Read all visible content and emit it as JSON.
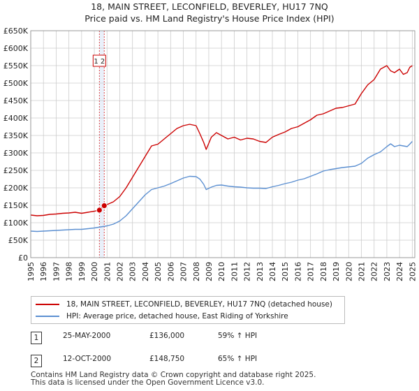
{
  "title_line1": "18, MAIN STREET, LECONFIELD, BEVERLEY, HU17 7NQ",
  "title_line2": "Price paid vs. HM Land Registry's House Price Index (HPI)",
  "colors": {
    "property": "#cc0000",
    "hpi": "#5b8fd1",
    "band": "#dbe6f7",
    "grid": "#cccccc"
  },
  "chart_data": {
    "type": "line",
    "ylim": [
      0,
      650000
    ],
    "xlim": [
      1995,
      2025.2
    ],
    "y_ticks": [
      0,
      50000,
      100000,
      150000,
      200000,
      250000,
      300000,
      350000,
      400000,
      450000,
      500000,
      550000,
      600000,
      650000
    ],
    "y_tick_labels": [
      "£0",
      "£50K",
      "£100K",
      "£150K",
      "£200K",
      "£250K",
      "£300K",
      "£350K",
      "£400K",
      "£450K",
      "£500K",
      "£550K",
      "£600K",
      "£650K"
    ],
    "x_tick_labels": [
      "1995",
      "1996",
      "1997",
      "1998",
      "1999",
      "2000",
      "2001",
      "2002",
      "2003",
      "2004",
      "2005",
      "2006",
      "2007",
      "2008",
      "2009",
      "2010",
      "2011",
      "2012",
      "2013",
      "2014",
      "2015",
      "2016",
      "2017",
      "2018",
      "2019",
      "2020",
      "2021",
      "2022",
      "2023",
      "2024",
      "2025"
    ],
    "series": [
      {
        "name": "18, MAIN STREET, LECONFIELD, BEVERLEY, HU17 7NQ (detached house)",
        "color": "#cc0000",
        "x": [
          1995,
          1995.5,
          1996,
          1996.5,
          1997,
          1997.5,
          1998,
          1998.5,
          1999,
          1999.5,
          2000,
          2000.4,
          2000.78,
          2001,
          2001.5,
          2002,
          2002.5,
          2003,
          2003.5,
          2004,
          2004.5,
          2005,
          2005.5,
          2006,
          2006.5,
          2007,
          2007.5,
          2008,
          2008.3,
          2008.6,
          2008.8,
          2009.2,
          2009.6,
          2010,
          2010.5,
          2011,
          2011.5,
          2012,
          2012.5,
          2013,
          2013.5,
          2014,
          2014.5,
          2015,
          2015.5,
          2016,
          2016.5,
          2017,
          2017.5,
          2018,
          2018.5,
          2019,
          2019.5,
          2020,
          2020.5,
          2021,
          2021.5,
          2022,
          2022.5,
          2023,
          2023.3,
          2023.6,
          2024,
          2024.3,
          2024.6,
          2024.8,
          2025
        ],
        "values": [
          122000,
          120000,
          121000,
          124000,
          125000,
          127000,
          128000,
          130000,
          127000,
          130000,
          133000,
          136000,
          148750,
          152000,
          160000,
          175000,
          200000,
          230000,
          260000,
          290000,
          320000,
          325000,
          340000,
          355000,
          370000,
          378000,
          382000,
          378000,
          355000,
          330000,
          310000,
          345000,
          358000,
          350000,
          340000,
          345000,
          337000,
          342000,
          340000,
          333000,
          330000,
          345000,
          353000,
          360000,
          370000,
          375000,
          385000,
          395000,
          408000,
          412000,
          420000,
          428000,
          430000,
          435000,
          440000,
          470000,
          495000,
          510000,
          540000,
          550000,
          535000,
          530000,
          540000,
          525000,
          530000,
          545000,
          550000
        ]
      },
      {
        "name": "HPI: Average price, detached house, East Riding of Yorkshire",
        "color": "#5b8fd1",
        "x": [
          1995,
          1995.5,
          1996,
          1996.5,
          1997,
          1997.5,
          1998,
          1998.5,
          1999,
          1999.5,
          2000,
          2000.5,
          2001,
          2001.5,
          2002,
          2002.5,
          2003,
          2003.5,
          2004,
          2004.5,
          2005,
          2005.5,
          2006,
          2006.5,
          2007,
          2007.5,
          2008,
          2008.3,
          2008.6,
          2008.8,
          2009.2,
          2009.6,
          2010,
          2010.5,
          2011,
          2011.5,
          2012,
          2012.5,
          2013,
          2013.5,
          2014,
          2014.5,
          2015,
          2015.5,
          2016,
          2016.5,
          2017,
          2017.5,
          2018,
          2018.5,
          2019,
          2019.5,
          2020,
          2020.5,
          2021,
          2021.5,
          2022,
          2022.5,
          2023,
          2023.3,
          2023.6,
          2024,
          2024.3,
          2024.6,
          2024.8,
          2025
        ],
        "values": [
          76000,
          75000,
          76000,
          77000,
          78000,
          79000,
          80000,
          81000,
          81000,
          83000,
          85000,
          88000,
          91000,
          96000,
          105000,
          120000,
          140000,
          160000,
          180000,
          195000,
          200000,
          205000,
          212000,
          220000,
          228000,
          233000,
          232000,
          225000,
          210000,
          195000,
          202000,
          207000,
          208000,
          205000,
          203000,
          202000,
          200000,
          199000,
          199000,
          198000,
          203000,
          207000,
          212000,
          216000,
          222000,
          226000,
          233000,
          240000,
          248000,
          252000,
          255000,
          258000,
          260000,
          262000,
          270000,
          285000,
          295000,
          303000,
          318000,
          326000,
          318000,
          322000,
          320000,
          318000,
          325000,
          333000
        ]
      }
    ],
    "transactions": [
      {
        "label": "1",
        "x": 2000.4,
        "value": 136000
      },
      {
        "label": "2",
        "x": 2000.78,
        "value": 148750
      }
    ],
    "marker_box_label": "1 2"
  },
  "legend": {
    "property_label": "18, MAIN STREET, LECONFIELD, BEVERLEY, HU17 7NQ (detached house)",
    "hpi_label": "HPI: Average price, detached house, East Riding of Yorkshire"
  },
  "transactions_table": [
    {
      "num": "1",
      "date": "25-MAY-2000",
      "price": "£136,000",
      "hpi": "59% ↑ HPI"
    },
    {
      "num": "2",
      "date": "12-OCT-2000",
      "price": "£148,750",
      "hpi": "65% ↑ HPI"
    }
  ],
  "footer_line1": "Contains HM Land Registry data © Crown copyright and database right 2025.",
  "footer_line2": "This data is licensed under the Open Government Licence v3.0."
}
